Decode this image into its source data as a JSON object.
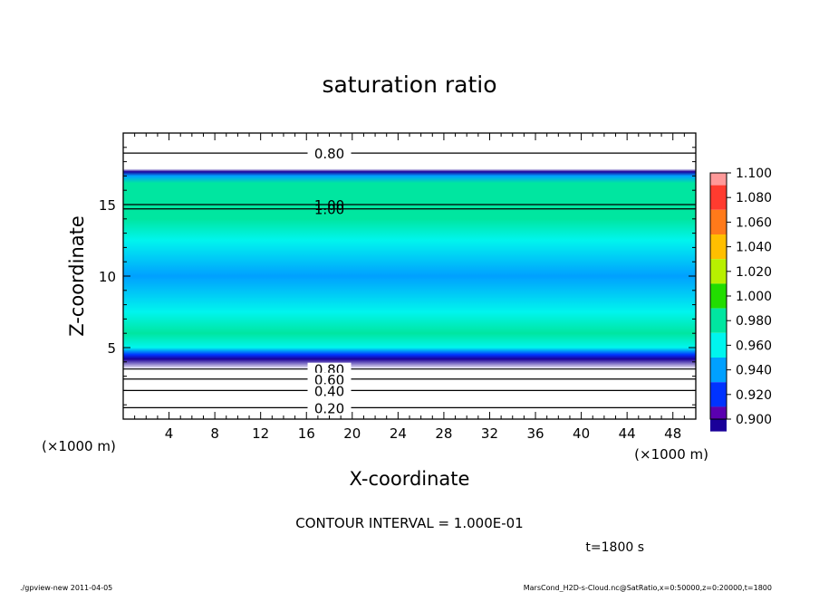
{
  "chart_data": {
    "type": "heatmap",
    "title": "saturation ratio",
    "xlabel": "X-coordinate",
    "ylabel": "Z-coordinate",
    "x_unit_left": "(×1000 m)",
    "x_unit_right": "(×1000 m)",
    "xlim": [
      0,
      50
    ],
    "ylim": [
      0,
      20
    ],
    "x_ticks": [
      4,
      8,
      12,
      16,
      20,
      24,
      28,
      32,
      36,
      40,
      44,
      48
    ],
    "y_ticks": [
      5,
      10,
      15
    ],
    "z_profile": [
      {
        "z": 0.0,
        "value": 0.05
      },
      {
        "z": 0.8,
        "value": 0.2
      },
      {
        "z": 2.0,
        "value": 0.4
      },
      {
        "z": 2.8,
        "value": 0.6
      },
      {
        "z": 3.5,
        "value": 0.8
      },
      {
        "z": 4.2,
        "value": 0.905
      },
      {
        "z": 4.5,
        "value": 0.93
      },
      {
        "z": 5.0,
        "value": 0.97
      },
      {
        "z": 6.0,
        "value": 0.985
      },
      {
        "z": 7.5,
        "value": 0.97
      },
      {
        "z": 10.0,
        "value": 0.955
      },
      {
        "z": 12.5,
        "value": 0.97
      },
      {
        "z": 14.0,
        "value": 0.988
      },
      {
        "z": 15.0,
        "value": 0.995
      },
      {
        "z": 16.5,
        "value": 0.98
      },
      {
        "z": 17.0,
        "value": 0.95
      },
      {
        "z": 17.3,
        "value": 0.905
      },
      {
        "z": 17.5,
        "value": 0.8
      },
      {
        "z": 20.0,
        "value": 0.8
      }
    ],
    "colorbar": {
      "levels": [
        "1.100",
        "1.080",
        "1.060",
        "1.040",
        "1.020",
        "1.000",
        "0.980",
        "0.960",
        "0.940",
        "0.920",
        "0.900"
      ],
      "colors": [
        "#ff9999",
        "#ff3b2f",
        "#ff7a1a",
        "#ffbf00",
        "#b8f000",
        "#22dd00",
        "#00e6a0",
        "#00f5ee",
        "#00a0ff",
        "#0033ff",
        "#1a0099",
        "#5b00b0"
      ]
    },
    "contours": [
      {
        "z": 18.6,
        "label": "0.80"
      },
      {
        "z": 15.0,
        "label": "1.00"
      },
      {
        "z": 14.7,
        "label": "1.00"
      },
      {
        "z": 3.5,
        "label": "0.80"
      },
      {
        "z": 2.8,
        "label": "0.60"
      },
      {
        "z": 2.0,
        "label": "0.40"
      },
      {
        "z": 0.8,
        "label": "0.20"
      }
    ],
    "contour_interval_text": "CONTOUR INTERVAL = 1.000E-01",
    "time_text": "t=1800 s"
  },
  "footer": {
    "left": "./gpview-new   2011-04-05",
    "right": "MarsCond_H2D-s-Cloud.nc@SatRatio,x=0:50000,z=0:20000,t=1800"
  }
}
